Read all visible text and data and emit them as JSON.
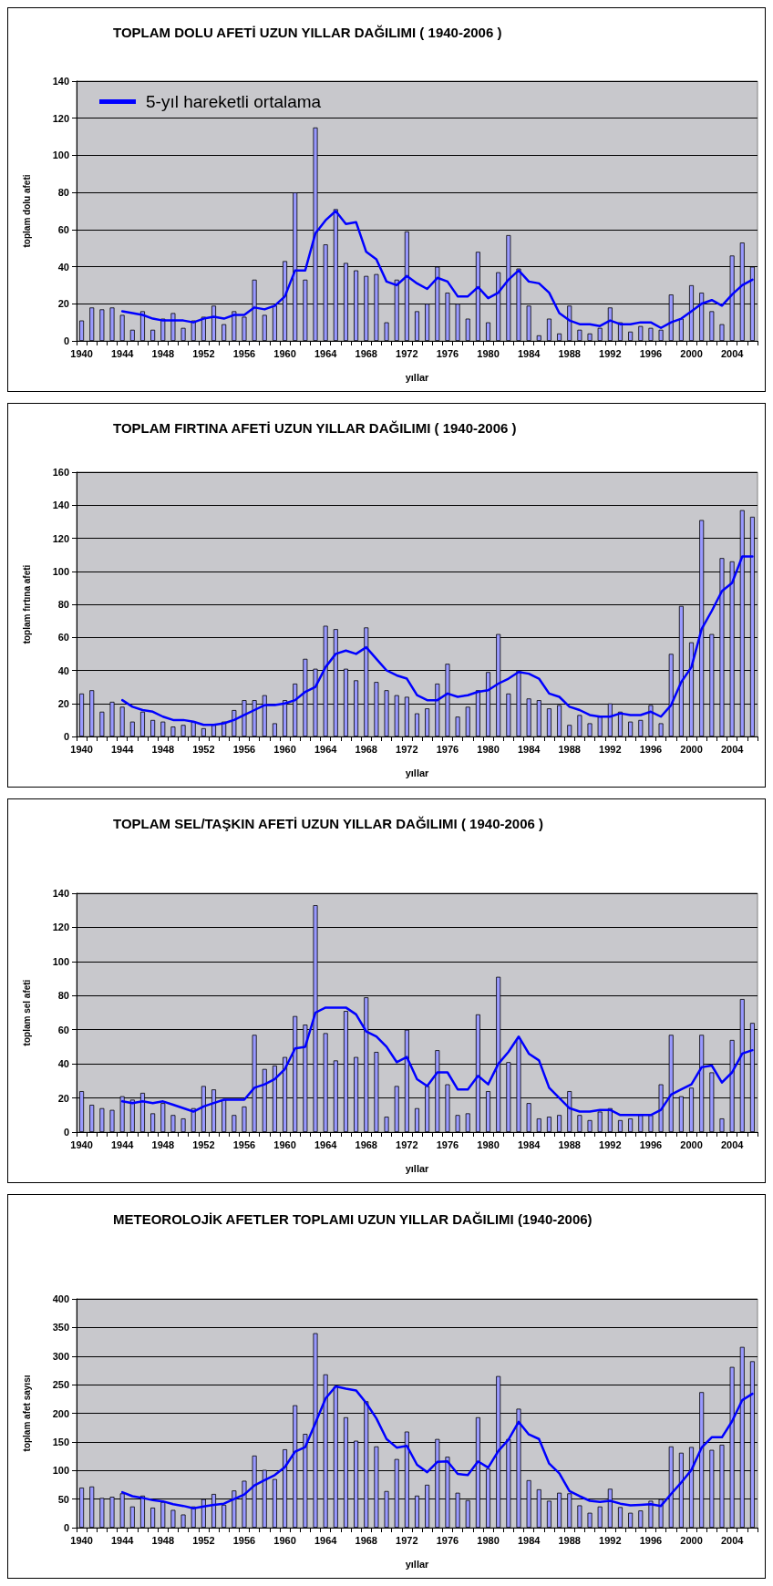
{
  "chart_data": [
    {
      "type": "bar",
      "title": "TOPLAM DOLU AFETİ UZUN YILLAR DAĞILIMI ( 1940-2006 )",
      "xlabel": "yıllar",
      "ylabel": "toplam dolu afeti",
      "categories": [
        "1940",
        null,
        null,
        null,
        "1944",
        null,
        null,
        null,
        "1948",
        null,
        null,
        null,
        "1952",
        null,
        null,
        null,
        "1956",
        null,
        null,
        null,
        "1960",
        null,
        null,
        null,
        "1964",
        null,
        null,
        null,
        "1968",
        null,
        null,
        null,
        "1972",
        null,
        null,
        null,
        "1976",
        null,
        null,
        null,
        "1980",
        null,
        null,
        null,
        "1984",
        null,
        null,
        null,
        "1988",
        null,
        null,
        null,
        "1992",
        null,
        null,
        null,
        "1996",
        null,
        null,
        null,
        "2000",
        null,
        null,
        null,
        "2004",
        null,
        null
      ],
      "series": [
        {
          "type": "bar",
          "color": "#9999ff",
          "values": [
            11,
            18,
            17,
            18,
            14,
            6,
            16,
            6,
            12,
            15,
            7,
            11,
            13,
            19,
            9,
            16,
            13,
            33,
            14,
            19,
            43,
            80,
            33,
            115,
            52,
            71,
            42,
            38,
            35,
            36,
            10,
            33,
            59,
            16,
            20,
            40,
            26,
            20,
            12,
            48,
            10,
            37,
            57,
            39,
            19,
            3,
            12,
            4,
            19,
            6,
            4,
            7,
            18,
            10,
            5,
            8,
            7,
            6,
            25,
            12,
            30,
            26,
            16,
            9,
            46,
            53,
            40
          ]
        },
        {
          "type": "line",
          "name": "5-yıl hareketli ortalama",
          "color": "#0000ff",
          "values": [
            null,
            null,
            null,
            null,
            16,
            15,
            14,
            12,
            11,
            11,
            11,
            10,
            12,
            13,
            12,
            14,
            14,
            18,
            17,
            19,
            24,
            38,
            38,
            58,
            65,
            70,
            63,
            64,
            48,
            44,
            32,
            30,
            35,
            31,
            28,
            34,
            32,
            24,
            24,
            29,
            23,
            26,
            33,
            38,
            32,
            31,
            26,
            15,
            11,
            9,
            9,
            8,
            11,
            9,
            9,
            10,
            10,
            7,
            10,
            12,
            16,
            20,
            22,
            19,
            25,
            30,
            33
          ]
        }
      ],
      "ylim": [
        0,
        140
      ],
      "yticks": [
        0,
        20,
        40,
        60,
        80,
        100,
        120,
        140
      ],
      "grid": "y",
      "legend": "top left",
      "marker": "none",
      "line_style": "solid"
    },
    {
      "type": "bar",
      "title": "TOPLAM FIRTINA AFETİ UZUN YILLAR DAĞILIMI ( 1940-2006 )",
      "xlabel": "yıllar",
      "ylabel": "toplam fırtına afeti",
      "categories": [
        "1940",
        null,
        null,
        null,
        "1944",
        null,
        null,
        null,
        "1948",
        null,
        null,
        null,
        "1952",
        null,
        null,
        null,
        "1956",
        null,
        null,
        null,
        "1960",
        null,
        null,
        null,
        "1964",
        null,
        null,
        null,
        "1968",
        null,
        null,
        null,
        "1972",
        null,
        null,
        null,
        "1976",
        null,
        null,
        null,
        "1980",
        null,
        null,
        null,
        "1984",
        null,
        null,
        null,
        "1988",
        null,
        null,
        null,
        "1992",
        null,
        null,
        null,
        "1996",
        null,
        null,
        null,
        "2000",
        null,
        null,
        null,
        "2004",
        null,
        null
      ],
      "series": [
        {
          "type": "bar",
          "color": "#9999ff",
          "values": [
            26,
            28,
            15,
            21,
            18,
            9,
            15,
            10,
            9,
            6,
            7,
            9,
            5,
            7,
            9,
            16,
            22,
            22,
            25,
            8,
            22,
            32,
            47,
            41,
            67,
            65,
            41,
            34,
            66,
            33,
            28,
            25,
            24,
            14,
            17,
            32,
            44,
            12,
            18,
            28,
            39,
            62,
            26,
            40,
            23,
            22,
            17,
            19,
            7,
            13,
            8,
            12,
            20,
            15,
            9,
            10,
            19,
            8,
            50,
            79,
            57,
            131,
            62,
            108,
            106,
            137,
            133
          ]
        },
        {
          "type": "line",
          "color": "#0000ff",
          "values": [
            null,
            null,
            null,
            null,
            22,
            18,
            16,
            15,
            12,
            10,
            10,
            9,
            7,
            7,
            8,
            10,
            13,
            16,
            19,
            19,
            20,
            22,
            27,
            30,
            42,
            50,
            52,
            50,
            54,
            47,
            40,
            37,
            35,
            25,
            22,
            22,
            26,
            24,
            25,
            27,
            28,
            32,
            35,
            39,
            38,
            35,
            26,
            24,
            18,
            16,
            13,
            12,
            12,
            14,
            13,
            13,
            15,
            12,
            19,
            33,
            42,
            65,
            76,
            88,
            93,
            109,
            109
          ]
        }
      ],
      "ylim": [
        0,
        160
      ],
      "yticks": [
        0,
        20,
        40,
        60,
        80,
        100,
        120,
        140,
        160
      ],
      "grid": "y",
      "marker": "none",
      "line_style": "solid"
    },
    {
      "type": "bar",
      "title": "TOPLAM SEL/TAŞKIN AFETİ UZUN YILLAR DAĞILIMI ( 1940-2006 )",
      "xlabel": "yıllar",
      "ylabel": "toplam sel afeti",
      "categories": [
        "1940",
        null,
        null,
        null,
        "1944",
        null,
        null,
        null,
        "1948",
        null,
        null,
        null,
        "1952",
        null,
        null,
        null,
        "1956",
        null,
        null,
        null,
        "1960",
        null,
        null,
        null,
        "1964",
        null,
        null,
        null,
        "1968",
        null,
        null,
        null,
        "1972",
        null,
        null,
        null,
        "1976",
        null,
        null,
        null,
        "1980",
        null,
        null,
        null,
        "1984",
        null,
        null,
        null,
        "1988",
        null,
        null,
        null,
        "1992",
        null,
        null,
        null,
        "1996",
        null,
        null,
        null,
        "2000",
        null,
        null,
        null,
        "2004",
        null,
        null
      ],
      "series": [
        {
          "type": "bar",
          "color": "#9999ff",
          "values": [
            24,
            16,
            14,
            13,
            21,
            19,
            23,
            11,
            17,
            10,
            8,
            14,
            27,
            25,
            19,
            10,
            15,
            57,
            37,
            39,
            44,
            68,
            63,
            133,
            58,
            42,
            71,
            44,
            79,
            47,
            9,
            27,
            60,
            14,
            27,
            48,
            28,
            10,
            11,
            69,
            24,
            91,
            41,
            55,
            17,
            8,
            9,
            10,
            24,
            10,
            7,
            12,
            14,
            7,
            8,
            10,
            10,
            28,
            57,
            21,
            26,
            57,
            35,
            8,
            54,
            78,
            64
          ]
        },
        {
          "type": "line",
          "color": "#0000ff",
          "values": [
            null,
            null,
            null,
            null,
            18,
            17,
            18,
            17,
            18,
            16,
            14,
            12,
            15,
            17,
            19,
            19,
            19,
            26,
            28,
            31,
            37,
            49,
            50,
            70,
            73,
            73,
            73,
            69,
            59,
            56,
            50,
            41,
            44,
            31,
            27,
            35,
            35,
            25,
            25,
            33,
            28,
            40,
            47,
            56,
            46,
            42,
            26,
            20,
            14,
            12,
            12,
            13,
            13,
            10,
            10,
            10,
            10,
            13,
            22,
            25,
            28,
            38,
            39,
            29,
            35,
            46,
            48
          ]
        }
      ],
      "ylim": [
        0,
        140
      ],
      "yticks": [
        0,
        20,
        40,
        60,
        80,
        100,
        120,
        140
      ],
      "grid": "y",
      "marker": "none",
      "line_style": "solid"
    },
    {
      "type": "bar",
      "title": "METEOROLOJİK AFETLER TOPLAMI UZUN YILLAR DAĞILIMI (1940-2006)",
      "xlabel": "yıllar",
      "ylabel": "toplam afet sayısı",
      "categories": [
        "1940",
        null,
        null,
        null,
        "1944",
        null,
        null,
        null,
        "1948",
        null,
        null,
        null,
        "1952",
        null,
        null,
        null,
        "1956",
        null,
        null,
        null,
        "1960",
        null,
        null,
        null,
        "1964",
        null,
        null,
        null,
        "1968",
        null,
        null,
        null,
        "1972",
        null,
        null,
        null,
        "1976",
        null,
        null,
        null,
        "1980",
        null,
        null,
        null,
        "1984",
        null,
        null,
        null,
        "1988",
        null,
        null,
        null,
        "1992",
        null,
        null,
        null,
        "1996",
        null,
        null,
        null,
        "2000",
        null,
        null,
        null,
        "2004",
        null,
        null
      ],
      "series": [
        {
          "type": "bar",
          "color": "#9999ff",
          "values": [
            70,
            72,
            52,
            54,
            60,
            37,
            56,
            35,
            45,
            31,
            23,
            37,
            50,
            59,
            40,
            65,
            82,
            126,
            101,
            85,
            137,
            214,
            164,
            340,
            268,
            247,
            193,
            152,
            221,
            142,
            64,
            120,
            168,
            56,
            75,
            155,
            124,
            61,
            48,
            193,
            103,
            265,
            155,
            208,
            83,
            67,
            47,
            61,
            60,
            39,
            26,
            37,
            68,
            36,
            26,
            30,
            47,
            50,
            142,
            131,
            141,
            237,
            136,
            145,
            281,
            316,
            291
          ]
        },
        {
          "type": "line",
          "color": "#0000ff",
          "values": [
            null,
            null,
            null,
            null,
            62,
            55,
            52,
            48,
            46,
            41,
            38,
            34,
            37,
            40,
            42,
            50,
            58,
            74,
            83,
            92,
            106,
            133,
            141,
            183,
            226,
            247,
            243,
            240,
            218,
            191,
            155,
            140,
            143,
            110,
            97,
            115,
            116,
            94,
            92,
            116,
            105,
            134,
            154,
            185,
            163,
            155,
            112,
            95,
            64,
            55,
            47,
            45,
            47,
            42,
            39,
            40,
            41,
            38,
            59,
            79,
            101,
            140,
            158,
            158,
            186,
            223,
            234
          ]
        }
      ],
      "ylim": [
        0,
        400
      ],
      "yticks": [
        0,
        50,
        100,
        150,
        200,
        250,
        300,
        350,
        400
      ],
      "grid": "y",
      "marker": "none",
      "line_style": "solid"
    }
  ]
}
